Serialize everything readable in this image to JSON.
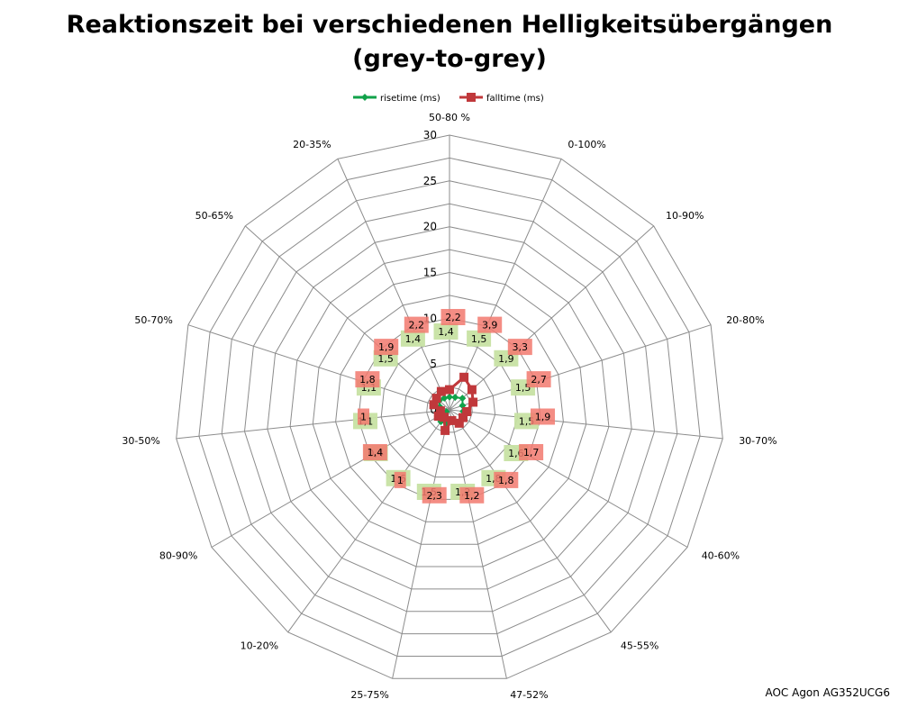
{
  "title_line1": "Reaktionszeit bei verschiedenen Helligkeitsübergängen",
  "title_line2": "(grey-to-grey)",
  "footer": "AOC Agon AG352UCG6",
  "chart_data": {
    "type": "radar",
    "categories": [
      "50-80 %",
      "0-100%",
      "10-90%",
      "20-80%",
      "30-70%",
      "40-60%",
      "45-55%",
      "47-52%",
      "25-75%",
      "10-20%",
      "80-90%",
      "30-50%",
      "50-70%",
      "50-65%",
      "20-35%"
    ],
    "r_min": 0,
    "r_max": 30,
    "ticks": [
      0,
      5,
      10,
      15,
      20,
      25,
      30
    ],
    "tick_labels": [
      "0",
      "5",
      "10",
      "15",
      "20",
      "25",
      "30"
    ],
    "grid": true,
    "legend_position": "top",
    "series": [
      {
        "name": "risetime (ms)",
        "color": "#11a24a",
        "label_bg": "#c7e2a3",
        "marker": "diamond",
        "values": [
          1.4,
          1.5,
          1.9,
          1.5,
          1.5,
          1.6,
          1.8,
          1.2,
          1.5,
          1.6,
          0.4,
          1.1,
          1.1,
          1.5,
          1.4
        ],
        "labels": [
          "1,4",
          "1,5",
          "1,9",
          "1,5",
          "1,5",
          "1,6",
          "1,8",
          "1,2",
          "1,5",
          "1,6",
          "0,4",
          "1,1",
          "1,1",
          "1,5",
          "1,4"
        ]
      },
      {
        "name": "falltime (ms)",
        "color": "#c0383b",
        "label_bg": "#f2796e",
        "marker": "square",
        "values": [
          2.2,
          3.9,
          3.3,
          2.7,
          1.9,
          1.7,
          1.8,
          1.2,
          2.3,
          1.0,
          1.4,
          1.0,
          1.8,
          1.9,
          2.2
        ],
        "labels": [
          "2,2",
          "3,9",
          "3,3",
          "2,7",
          "1,9",
          "1,7",
          "1,8",
          "1,2",
          "2,3",
          "1",
          "1,4",
          "1",
          "1,8",
          "1,9",
          "2,2"
        ]
      }
    ]
  }
}
